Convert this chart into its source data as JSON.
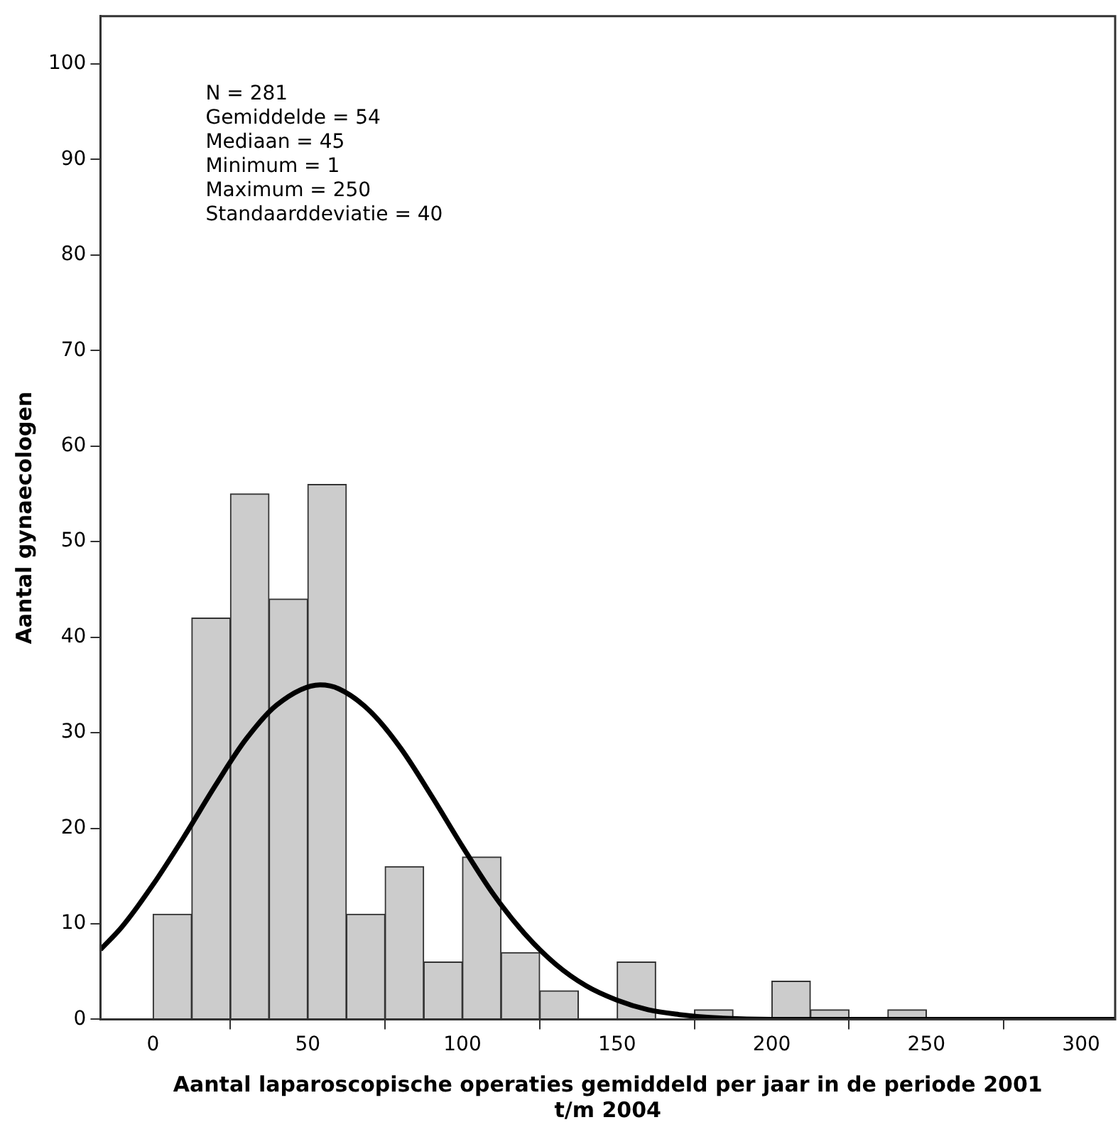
{
  "chart_data": {
    "type": "histogram",
    "xlabel": "Aantal laparoscopische operaties gemiddeld per jaar in de periode 2001 t/m 2004",
    "ylabel": "Aantal gynaecologen",
    "annotations": [
      "N = 281",
      "Gemiddelde = 54",
      "Mediaan = 45",
      "Minimum = 1",
      "Maximum = 250",
      "Standaarddeviatie = 40"
    ],
    "bins": [
      0,
      12.5,
      25,
      37.5,
      50,
      62.5,
      75,
      87.5,
      100,
      112.5,
      125,
      137.5,
      150,
      162.5,
      175,
      187.5,
      200,
      212.5,
      225,
      237.5,
      250
    ],
    "values": [
      11,
      42,
      55,
      44,
      56,
      11,
      16,
      6,
      17,
      7,
      3,
      0,
      6,
      0,
      1,
      0,
      4,
      1,
      0,
      1
    ],
    "color": "#cccccc",
    "series": [
      {
        "type": "line",
        "color": "#000000",
        "x": [
          -17,
          -10,
          0,
          10,
          20,
          30,
          40,
          54,
          60,
          70,
          80,
          90,
          100,
          110,
          120,
          130,
          140,
          150,
          160,
          170,
          180,
          200,
          250,
          311
        ],
        "values": [
          7.3,
          9.7,
          14.1,
          19.1,
          24.4,
          29.3,
          32.9,
          35,
          34.6,
          32.3,
          28.4,
          23.4,
          18.1,
          13.1,
          9,
          5.8,
          3.5,
          2,
          1,
          0.5,
          0.2,
          0,
          0,
          0
        ]
      }
    ],
    "xlim": [
      -17,
      311
    ],
    "xticks": [
      0,
      50,
      100,
      150,
      200,
      250,
      300
    ],
    "ylim": [
      0,
      105
    ],
    "yticks": [
      0,
      10,
      20,
      30,
      40,
      50,
      60,
      70,
      80,
      90,
      100
    ],
    "grid": false,
    "legend": false,
    "marker": "none"
  }
}
